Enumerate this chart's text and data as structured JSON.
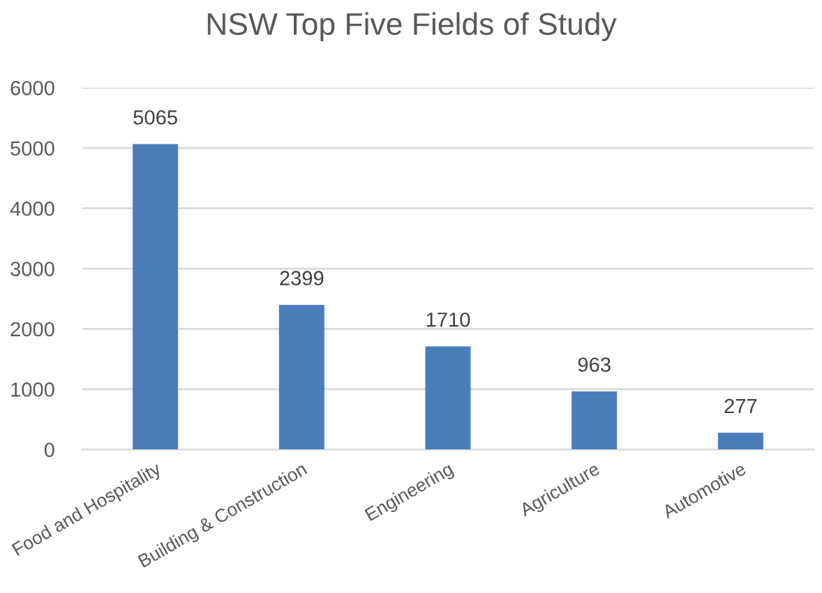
{
  "chart_data": {
    "type": "bar",
    "title": "NSW Top Five Fields of Study",
    "categories": [
      "Food and Hospitality",
      "Building & Construction",
      "Engineering",
      "Agriculture",
      "Automotive"
    ],
    "values": [
      5065,
      2399,
      1710,
      963,
      277
    ],
    "color": "#4a7ebb",
    "ylim": [
      0,
      6000
    ],
    "yticks": [
      0,
      1000,
      2000,
      3000,
      4000,
      5000,
      6000
    ],
    "grid": "y",
    "data_labels": true
  }
}
